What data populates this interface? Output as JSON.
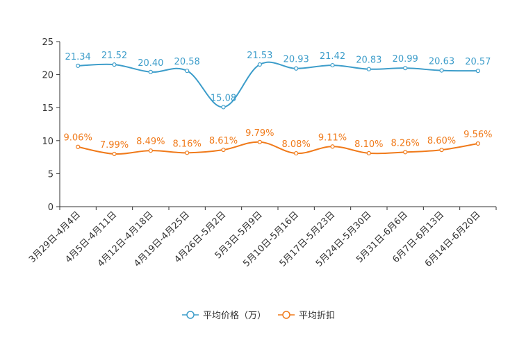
{
  "chart_data": {
    "type": "line",
    "title": "",
    "xlabel": "",
    "ylabel": "",
    "ylim": [
      0,
      25
    ],
    "yticks": [
      0,
      5,
      10,
      15,
      20,
      25
    ],
    "grid": false,
    "legend_position": "bottom",
    "categories": [
      "3月29日-4月4日",
      "4月5日-4月11日",
      "4月12日-4月18日",
      "4月19日-4月25日",
      "4月26日-5月2日",
      "5月3日-5月9日",
      "5月10日-5月16日",
      "5月17日-5月23日",
      "5月24日-5月30日",
      "5月31日-6月6日",
      "6月7日-6月13日",
      "6月14日-6月20日"
    ],
    "series": [
      {
        "name": "平均价格（万）",
        "color": "#3d9dca",
        "values": [
          21.34,
          21.52,
          20.4,
          20.58,
          15.08,
          21.53,
          20.93,
          21.42,
          20.83,
          20.99,
          20.63,
          20.57
        ],
        "labels": [
          "21.34",
          "21.52",
          "20.40",
          "20.58",
          "15.08",
          "21.53",
          "20.93",
          "21.42",
          "20.83",
          "20.99",
          "20.63",
          "20.57"
        ]
      },
      {
        "name": "平均折扣",
        "color": "#f07a1a",
        "values": [
          9.06,
          7.99,
          8.49,
          8.16,
          8.61,
          9.79,
          8.08,
          9.11,
          8.1,
          8.26,
          8.6,
          9.56
        ],
        "labels": [
          "9.06%",
          "7.99%",
          "8.49%",
          "8.16%",
          "8.61%",
          "9.79%",
          "8.08%",
          "9.11%",
          "8.10%",
          "8.26%",
          "8.60%",
          "9.56%"
        ]
      }
    ]
  }
}
